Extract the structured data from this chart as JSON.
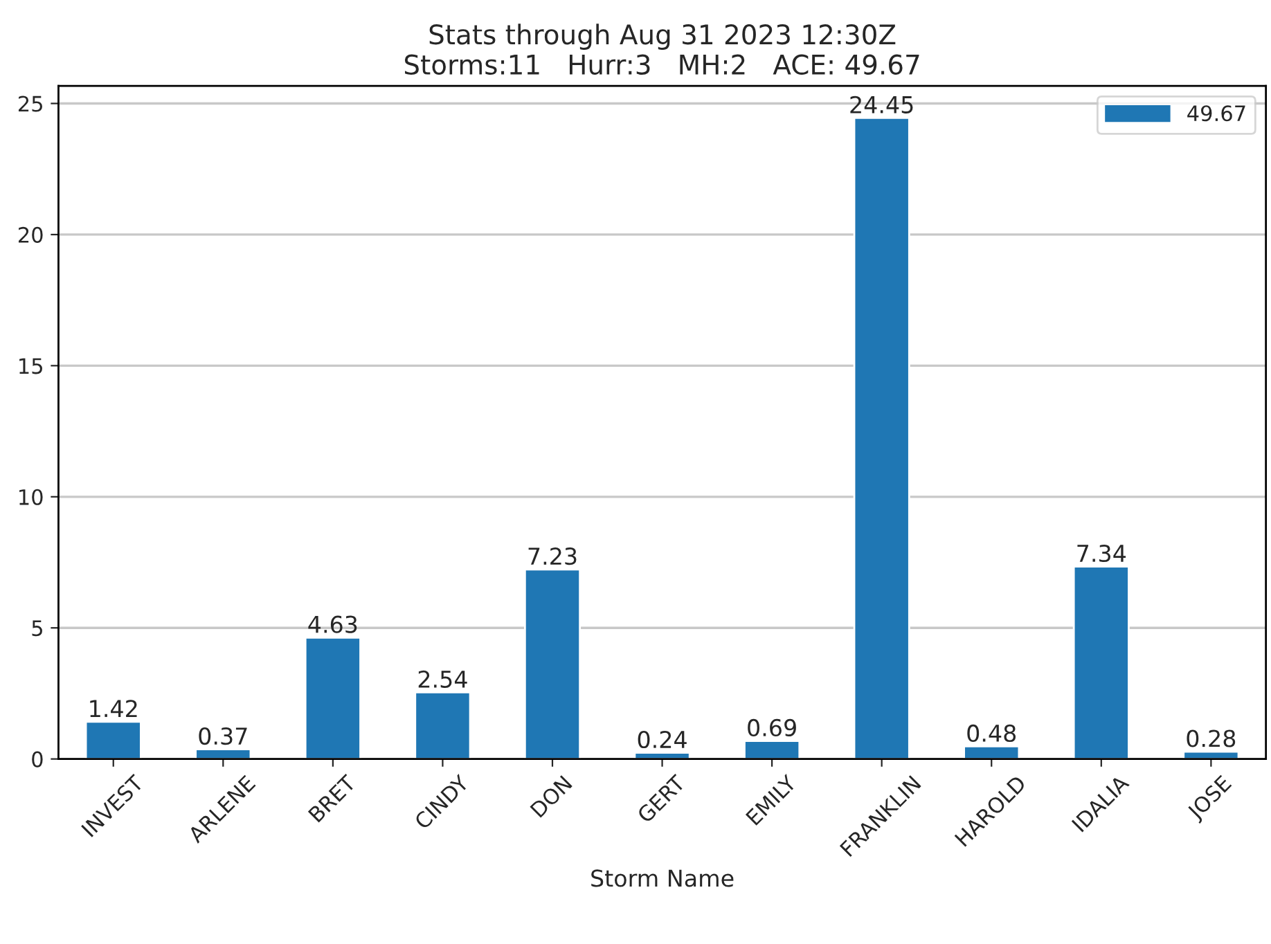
{
  "chart_data": {
    "type": "bar",
    "title": "Stats through Aug 31 2023 12:30Z",
    "subtitle": "Storms:11   Hurr:3   MH:2   ACE: 49.67",
    "xlabel": "Storm Name",
    "categories": [
      "INVEST",
      "ARLENE",
      "BRET",
      "CINDY",
      "DON",
      "GERT",
      "EMILY",
      "FRANKLIN",
      "HAROLD",
      "IDALIA",
      "JOSE"
    ],
    "series": [
      {
        "name": "49.67",
        "color": "#1f77b4",
        "values": [
          1.42,
          0.37,
          4.63,
          2.54,
          7.23,
          0.24,
          0.69,
          24.45,
          0.48,
          7.34,
          0.28
        ]
      }
    ],
    "ylim": [
      0,
      25.67
    ],
    "yticks": [
      0,
      5,
      10,
      15,
      20,
      25
    ],
    "grid": "y",
    "legend": "top right",
    "data_labels": true
  }
}
